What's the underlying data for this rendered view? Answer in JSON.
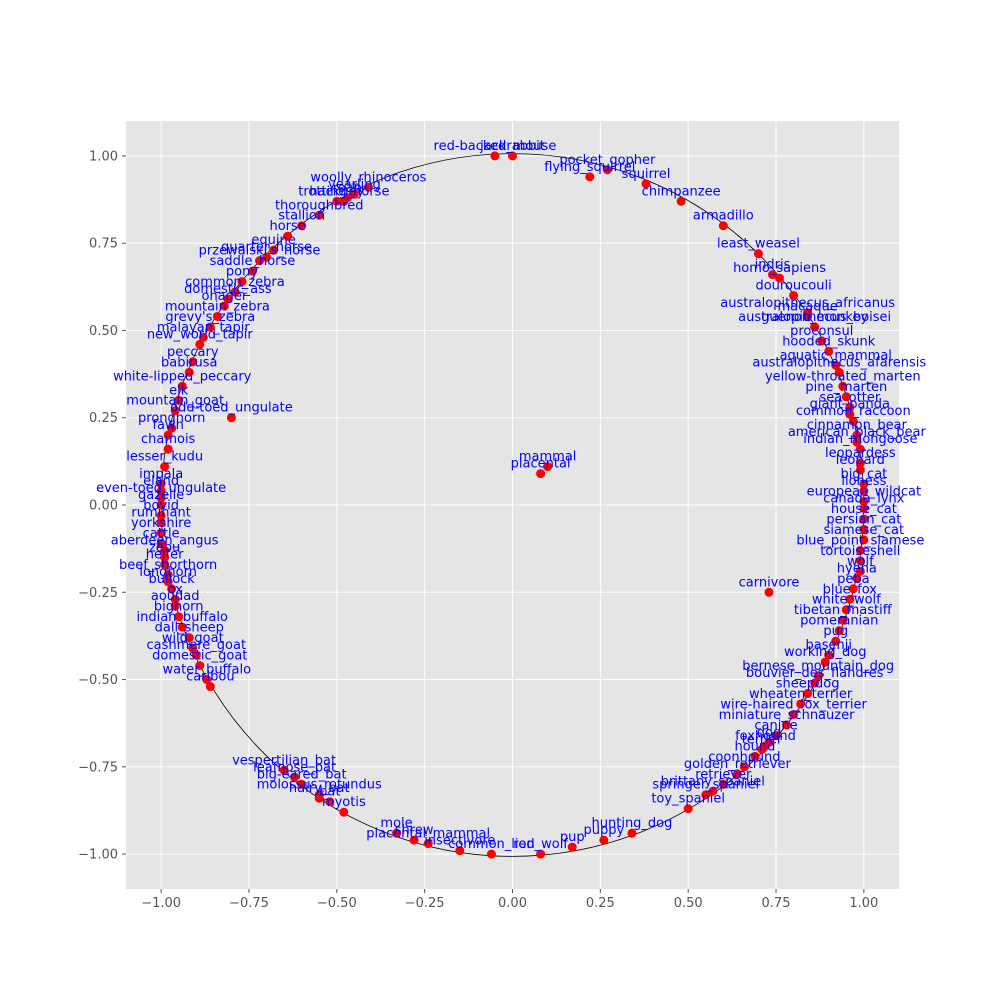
{
  "chart_data": {
    "type": "scatter",
    "title": "",
    "xlabel": "",
    "ylabel": "",
    "xlim": [
      -1.1,
      1.1
    ],
    "ylim": [
      -1.1,
      1.1
    ],
    "grid": true,
    "unit_circle": true,
    "x_ticks": [
      -1.0,
      -0.75,
      -0.5,
      -0.25,
      0.0,
      0.25,
      0.5,
      0.75,
      1.0
    ],
    "y_ticks": [
      -1.0,
      -0.75,
      -0.5,
      -0.25,
      0.0,
      0.25,
      0.5,
      0.75,
      1.0
    ],
    "x_tick_labels": [
      "−1.00",
      "−0.75",
      "−0.50",
      "−0.25",
      "0.00",
      "0.25",
      "0.50",
      "0.75",
      "1.00"
    ],
    "y_tick_labels": [
      "−1.00",
      "−0.75",
      "−0.50",
      "−0.25",
      "0.00",
      "0.25",
      "0.50",
      "0.75",
      "1.00"
    ],
    "colors": {
      "point": "#ff0000",
      "label": "#0000ff",
      "background": "#e5e5e5",
      "grid": "#ffffff",
      "circle": "#000000"
    },
    "points": [
      {
        "x": 0.08,
        "y": 0.09,
        "label": "placental"
      },
      {
        "x": 0.1,
        "y": 0.11,
        "label": "mammal"
      },
      {
        "x": 0.73,
        "y": -0.25,
        "label": "carnivore"
      },
      {
        "x": -0.8,
        "y": 0.25,
        "label": "odd-toed_ungulate"
      },
      {
        "x": -0.41,
        "y": 0.91,
        "label": "woolly_rhinoceros"
      },
      {
        "x": -0.05,
        "y": 1.0,
        "label": "red-backed_mouse"
      },
      {
        "x": 0.0,
        "y": 1.0,
        "label": "jackrabbit"
      },
      {
        "x": 0.27,
        "y": 0.96,
        "label": "pocket_gopher"
      },
      {
        "x": 0.22,
        "y": 0.94,
        "label": "flying_squirrel"
      },
      {
        "x": 0.38,
        "y": 0.92,
        "label": "squirrel"
      },
      {
        "x": 0.48,
        "y": 0.87,
        "label": "chimpanzee"
      },
      {
        "x": 0.6,
        "y": 0.8,
        "label": "armadillo"
      },
      {
        "x": 0.7,
        "y": 0.72,
        "label": "least_weasel"
      },
      {
        "x": 0.76,
        "y": 0.65,
        "label": "homo_sapiens"
      },
      {
        "x": 0.84,
        "y": 0.55,
        "label": "australopithecus_africanus"
      },
      {
        "x": 0.86,
        "y": 0.51,
        "label": "australopithecus_boisei"
      },
      {
        "x": 0.74,
        "y": 0.66,
        "label": "indris"
      },
      {
        "x": 0.8,
        "y": 0.6,
        "label": "douroucouli"
      },
      {
        "x": 0.84,
        "y": 0.54,
        "label": "macaque"
      },
      {
        "x": 0.86,
        "y": 0.51,
        "label": "guenon_monkey"
      },
      {
        "x": 0.88,
        "y": 0.47,
        "label": "proconsul"
      },
      {
        "x": 0.93,
        "y": 0.38,
        "label": "australopithecus_afarensis"
      },
      {
        "x": 0.9,
        "y": 0.44,
        "label": "hooded_skunk"
      },
      {
        "x": 0.92,
        "y": 0.4,
        "label": "aquatic_mammal"
      },
      {
        "x": 0.94,
        "y": 0.34,
        "label": "yellow-throated_marten"
      },
      {
        "x": 0.95,
        "y": 0.31,
        "label": "pine_marten"
      },
      {
        "x": 0.96,
        "y": 0.28,
        "label": "sea_otter"
      },
      {
        "x": 0.96,
        "y": 0.26,
        "label": "giant_panda"
      },
      {
        "x": 0.97,
        "y": 0.24,
        "label": "common_raccoon"
      },
      {
        "x": 0.98,
        "y": 0.2,
        "label": "cinnamon_bear"
      },
      {
        "x": 0.98,
        "y": 0.18,
        "label": "american_black_bear"
      },
      {
        "x": 0.99,
        "y": 0.16,
        "label": "indian_mongoose"
      },
      {
        "x": 0.99,
        "y": 0.12,
        "label": "leopardess"
      },
      {
        "x": 0.99,
        "y": 0.1,
        "label": "leopard"
      },
      {
        "x": 1.0,
        "y": 0.06,
        "label": "big_cat"
      },
      {
        "x": 1.0,
        "y": 0.04,
        "label": "lioness"
      },
      {
        "x": 1.0,
        "y": 0.01,
        "label": "european_wildcat"
      },
      {
        "x": 1.0,
        "y": -0.01,
        "label": "canada_lynx"
      },
      {
        "x": 1.0,
        "y": -0.04,
        "label": "house_cat"
      },
      {
        "x": 1.0,
        "y": -0.07,
        "label": "persian_cat"
      },
      {
        "x": 1.0,
        "y": -0.1,
        "label": "siamese_cat"
      },
      {
        "x": 0.99,
        "y": -0.13,
        "label": "blue_point_siamese"
      },
      {
        "x": 0.99,
        "y": -0.16,
        "label": "tortoiseshell"
      },
      {
        "x": 0.99,
        "y": -0.19,
        "label": "wolf"
      },
      {
        "x": 0.98,
        "y": -0.21,
        "label": "hyena"
      },
      {
        "x": 0.97,
        "y": -0.24,
        "label": "peba"
      },
      {
        "x": 0.96,
        "y": -0.27,
        "label": "blue_fox"
      },
      {
        "x": 0.95,
        "y": -0.3,
        "label": "white_wolf"
      },
      {
        "x": 0.94,
        "y": -0.33,
        "label": "tibetan_mastiff"
      },
      {
        "x": 0.93,
        "y": -0.36,
        "label": "pomeranian"
      },
      {
        "x": 0.92,
        "y": -0.39,
        "label": "pug"
      },
      {
        "x": 0.9,
        "y": -0.43,
        "label": "basenji"
      },
      {
        "x": 0.89,
        "y": -0.45,
        "label": "working_dog"
      },
      {
        "x": 0.87,
        "y": -0.49,
        "label": "bernese_mountain_dog"
      },
      {
        "x": 0.86,
        "y": -0.51,
        "label": "bouvier_des_flandres"
      },
      {
        "x": 0.84,
        "y": -0.54,
        "label": "sheepdog"
      },
      {
        "x": 0.82,
        "y": -0.57,
        "label": "wheaten_terrier"
      },
      {
        "x": 0.8,
        "y": -0.6,
        "label": "wire-haired_fox_terrier"
      },
      {
        "x": 0.75,
        "y": -0.66,
        "label": "canine"
      },
      {
        "x": 0.73,
        "y": -0.68,
        "label": "dog"
      },
      {
        "x": 0.71,
        "y": -0.7,
        "label": "terrier"
      },
      {
        "x": 0.78,
        "y": -0.63,
        "label": "miniature_schnauzer"
      },
      {
        "x": 0.72,
        "y": -0.69,
        "label": "foxhound"
      },
      {
        "x": 0.69,
        "y": -0.72,
        "label": "hound"
      },
      {
        "x": 0.66,
        "y": -0.75,
        "label": "coonhound"
      },
      {
        "x": 0.64,
        "y": -0.77,
        "label": "golden_retriever"
      },
      {
        "x": 0.6,
        "y": -0.8,
        "label": "retriever"
      },
      {
        "x": 0.55,
        "y": -0.83,
        "label": "springer_spaniel"
      },
      {
        "x": 0.57,
        "y": -0.82,
        "label": "brittany_spaniel"
      },
      {
        "x": 0.5,
        "y": -0.87,
        "label": "toy_spaniel"
      },
      {
        "x": 0.34,
        "y": -0.94,
        "label": "hunting_dog"
      },
      {
        "x": 0.26,
        "y": -0.96,
        "label": "puppy"
      },
      {
        "x": 0.17,
        "y": -0.98,
        "label": "pup"
      },
      {
        "x": 0.08,
        "y": -1.0,
        "label": "red_wolf"
      },
      {
        "x": -0.06,
        "y": -1.0,
        "label": "common_lion"
      },
      {
        "x": -0.15,
        "y": -0.99,
        "label": "insectivore"
      },
      {
        "x": -0.24,
        "y": -0.97,
        "label": "placental_mammal"
      },
      {
        "x": -0.28,
        "y": -0.96,
        "label": "shrew"
      },
      {
        "x": -0.33,
        "y": -0.94,
        "label": "mole"
      },
      {
        "x": -0.48,
        "y": -0.88,
        "label": "myotis"
      },
      {
        "x": -0.52,
        "y": -0.85,
        "label": "bat"
      },
      {
        "x": -0.55,
        "y": -0.83,
        "label": "molossus_rotundus"
      },
      {
        "x": -0.6,
        "y": -0.8,
        "label": "big-eared_bat"
      },
      {
        "x": -0.62,
        "y": -0.78,
        "label": "leafnose_bat"
      },
      {
        "x": -0.55,
        "y": -0.84,
        "label": "hairy_bat"
      },
      {
        "x": -0.65,
        "y": -0.76,
        "label": "vespertilian_bat"
      },
      {
        "x": -0.86,
        "y": -0.52,
        "label": "caribou"
      },
      {
        "x": -0.87,
        "y": -0.5,
        "label": "water_buffalo"
      },
      {
        "x": -0.89,
        "y": -0.46,
        "label": "domestic_goat"
      },
      {
        "x": -0.9,
        "y": -0.43,
        "label": "cashmere_goat"
      },
      {
        "x": -0.91,
        "y": -0.41,
        "label": "wild_goat"
      },
      {
        "x": -0.92,
        "y": -0.38,
        "label": "dall_sheep"
      },
      {
        "x": -0.94,
        "y": -0.35,
        "label": "indian_buffalo"
      },
      {
        "x": -0.95,
        "y": -0.32,
        "label": "bighorn"
      },
      {
        "x": -0.96,
        "y": -0.29,
        "label": "aoudad"
      },
      {
        "x": -0.96,
        "y": -0.27,
        "label": "ox"
      },
      {
        "x": -0.97,
        "y": -0.24,
        "label": "bullock"
      },
      {
        "x": -0.98,
        "y": -0.22,
        "label": "longhorn"
      },
      {
        "x": -0.98,
        "y": -0.2,
        "label": "beef_shorthorn"
      },
      {
        "x": -0.99,
        "y": -0.17,
        "label": "heifer"
      },
      {
        "x": -0.99,
        "y": -0.15,
        "label": "zebu"
      },
      {
        "x": -0.99,
        "y": -0.13,
        "label": "aberdeen_angus"
      },
      {
        "x": -1.0,
        "y": -0.11,
        "label": "cattle"
      },
      {
        "x": -1.0,
        "y": -0.08,
        "label": "yorkshire"
      },
      {
        "x": -1.0,
        "y": -0.05,
        "label": "ruminant"
      },
      {
        "x": -1.0,
        "y": -0.03,
        "label": "bovid"
      },
      {
        "x": -1.0,
        "y": 0.0,
        "label": "gazelle"
      },
      {
        "x": -1.0,
        "y": 0.02,
        "label": "even-toed_ungulate"
      },
      {
        "x": -1.0,
        "y": 0.04,
        "label": "eland"
      },
      {
        "x": -1.0,
        "y": 0.06,
        "label": "impala"
      },
      {
        "x": -0.99,
        "y": 0.11,
        "label": "lesser_kudu"
      },
      {
        "x": -0.98,
        "y": 0.16,
        "label": "chamois"
      },
      {
        "x": -0.98,
        "y": 0.2,
        "label": "fawn"
      },
      {
        "x": -0.97,
        "y": 0.22,
        "label": "pronghorn"
      },
      {
        "x": -0.96,
        "y": 0.27,
        "label": "mountain_goat"
      },
      {
        "x": -0.95,
        "y": 0.3,
        "label": "elk"
      },
      {
        "x": -0.94,
        "y": 0.34,
        "label": "white-lipped_peccary"
      },
      {
        "x": -0.92,
        "y": 0.38,
        "label": "babirusa"
      },
      {
        "x": -0.91,
        "y": 0.41,
        "label": "peccary"
      },
      {
        "x": -0.89,
        "y": 0.46,
        "label": "new_world_tapir"
      },
      {
        "x": -0.88,
        "y": 0.48,
        "label": "malayan_tapir"
      },
      {
        "x": -0.86,
        "y": 0.51,
        "label": "grevy's_zebra"
      },
      {
        "x": -0.84,
        "y": 0.54,
        "label": "mountain_zebra"
      },
      {
        "x": -0.82,
        "y": 0.57,
        "label": "onager"
      },
      {
        "x": -0.81,
        "y": 0.59,
        "label": "domestic_ass"
      },
      {
        "x": -0.79,
        "y": 0.61,
        "label": "common_zebra"
      },
      {
        "x": -0.77,
        "y": 0.64,
        "label": "pony"
      },
      {
        "x": -0.74,
        "y": 0.67,
        "label": "saddle_horse"
      },
      {
        "x": -0.72,
        "y": 0.7,
        "label": "przewalski's_horse"
      },
      {
        "x": -0.7,
        "y": 0.71,
        "label": "quarter_horse"
      },
      {
        "x": -0.68,
        "y": 0.73,
        "label": "equine"
      },
      {
        "x": -0.64,
        "y": 0.77,
        "label": "horse"
      },
      {
        "x": -0.6,
        "y": 0.8,
        "label": "stallion"
      },
      {
        "x": -0.55,
        "y": 0.83,
        "label": "thoroughbred"
      },
      {
        "x": -0.48,
        "y": 0.87,
        "label": "trotting_horse"
      },
      {
        "x": -0.45,
        "y": 0.89,
        "label": "yearling"
      },
      {
        "x": -0.5,
        "y": 0.87,
        "label": "hackney"
      },
      {
        "x": -0.47,
        "y": 0.88,
        "label": "roan"
      }
    ]
  }
}
